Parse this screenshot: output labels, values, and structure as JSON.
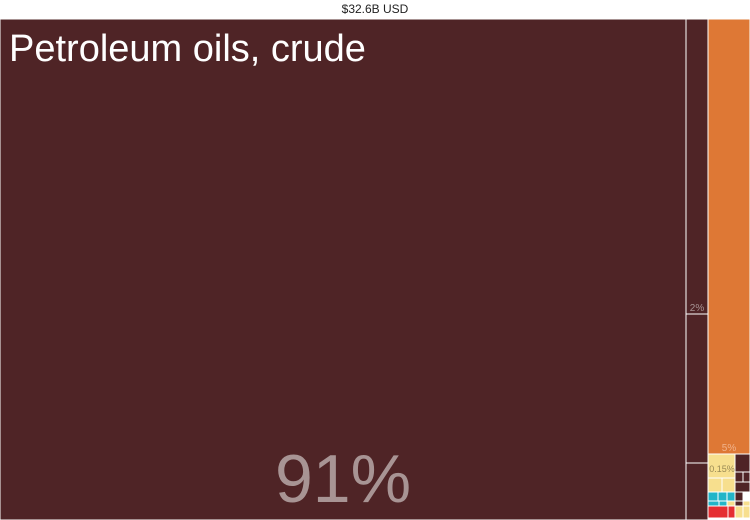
{
  "header": {
    "total": "$32.6B USD"
  },
  "chart_data": {
    "type": "treemap",
    "total_value": "$32.6B USD",
    "items": [
      {
        "label": "Petroleum oils, crude",
        "share_label": "91%",
        "value": 91,
        "color": "#4f2426"
      },
      {
        "label": "",
        "share_label": "2%",
        "value": 2,
        "color": "#4f2426"
      },
      {
        "label": "",
        "share_label": "",
        "value": 0.5,
        "color": "#4f2426"
      },
      {
        "label": "",
        "share_label": "5%",
        "value": 5,
        "color": "#de7835"
      },
      {
        "label": "",
        "share_label": "0.15%",
        "value": 0.15,
        "color": "#f7df8e"
      },
      {
        "label": "",
        "share_label": "",
        "value": 0.12,
        "color": "#4f2426"
      },
      {
        "label": "",
        "share_label": "",
        "value": 0.1,
        "color": "#22b5c8"
      },
      {
        "label": "",
        "share_label": "",
        "value": 0.08,
        "color": "#e52e32"
      },
      {
        "label": "",
        "share_label": "",
        "value": 0.05,
        "color": "#f7df8e"
      }
    ]
  }
}
